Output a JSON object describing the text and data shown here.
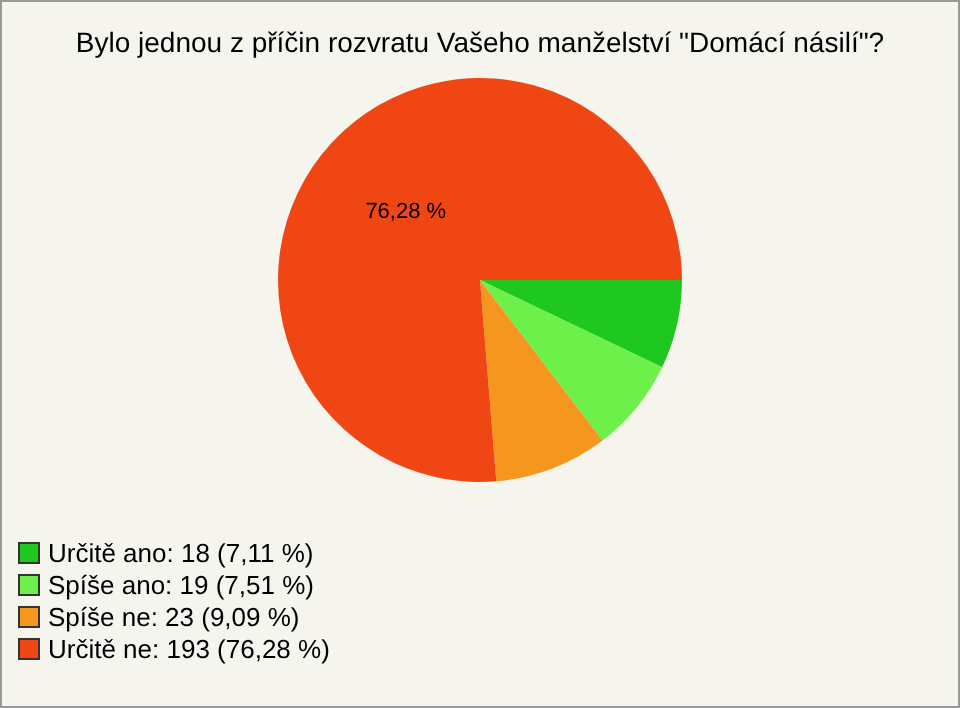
{
  "chart_data": {
    "type": "pie",
    "title": "Bylo jednou z příčin rozvratu Vašeho manželství \"Domácí násilí\"?",
    "categories": [
      "Určitě ano: 18 (7,11 %)",
      "Spíše ano: 19 (7,51 %)",
      "Spíše ne: 23 (9,09 %)",
      "Určitě ne: 193 (76,28 %)"
    ],
    "values": [
      18,
      19,
      23,
      193
    ],
    "colors": [
      "#1ec81e",
      "#6ef04a",
      "#f5961e",
      "#f04614"
    ],
    "annotations": [
      {
        "text": "76,28 %",
        "x": "Určitě ne: 193 (76,28 %)"
      }
    ],
    "legend": "bottom left"
  }
}
